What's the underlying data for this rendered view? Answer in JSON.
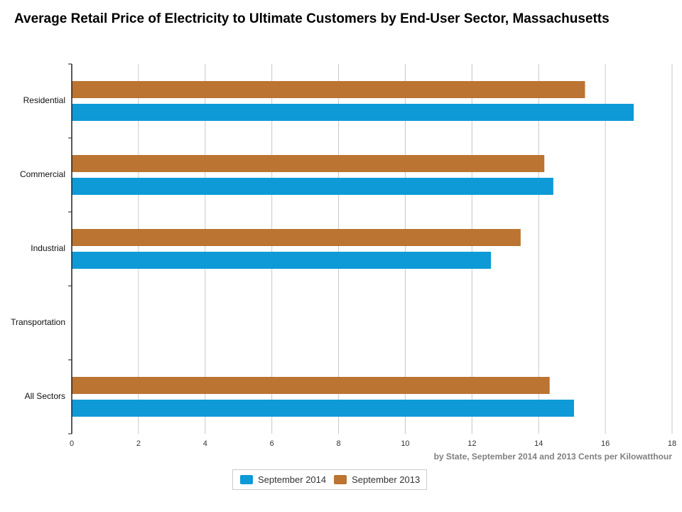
{
  "title": "Average Retail Price of Electricity to Ultimate Customers by End-User Sector, Massachusetts",
  "chart_data": {
    "type": "bar",
    "orientation": "horizontal",
    "categories": [
      "Residential",
      "Commercial",
      "Industrial",
      "Transportation",
      "All Sectors"
    ],
    "series": [
      {
        "name": "September 2014",
        "color": "#0e9ad7",
        "values": [
          16.85,
          14.44,
          12.57,
          null,
          15.06
        ]
      },
      {
        "name": "September 2013",
        "color": "#bb7431",
        "values": [
          15.39,
          14.17,
          13.46,
          null,
          14.33
        ]
      }
    ],
    "xlim": [
      0,
      18
    ],
    "xticks": [
      "0",
      "2",
      "4",
      "6",
      "8",
      "10",
      "12",
      "14",
      "16",
      "18"
    ],
    "xlabel": "by State, September 2014 and 2013 Cents per Kilowatthour",
    "grid": "vertical",
    "legend_position": "bottom-center"
  }
}
